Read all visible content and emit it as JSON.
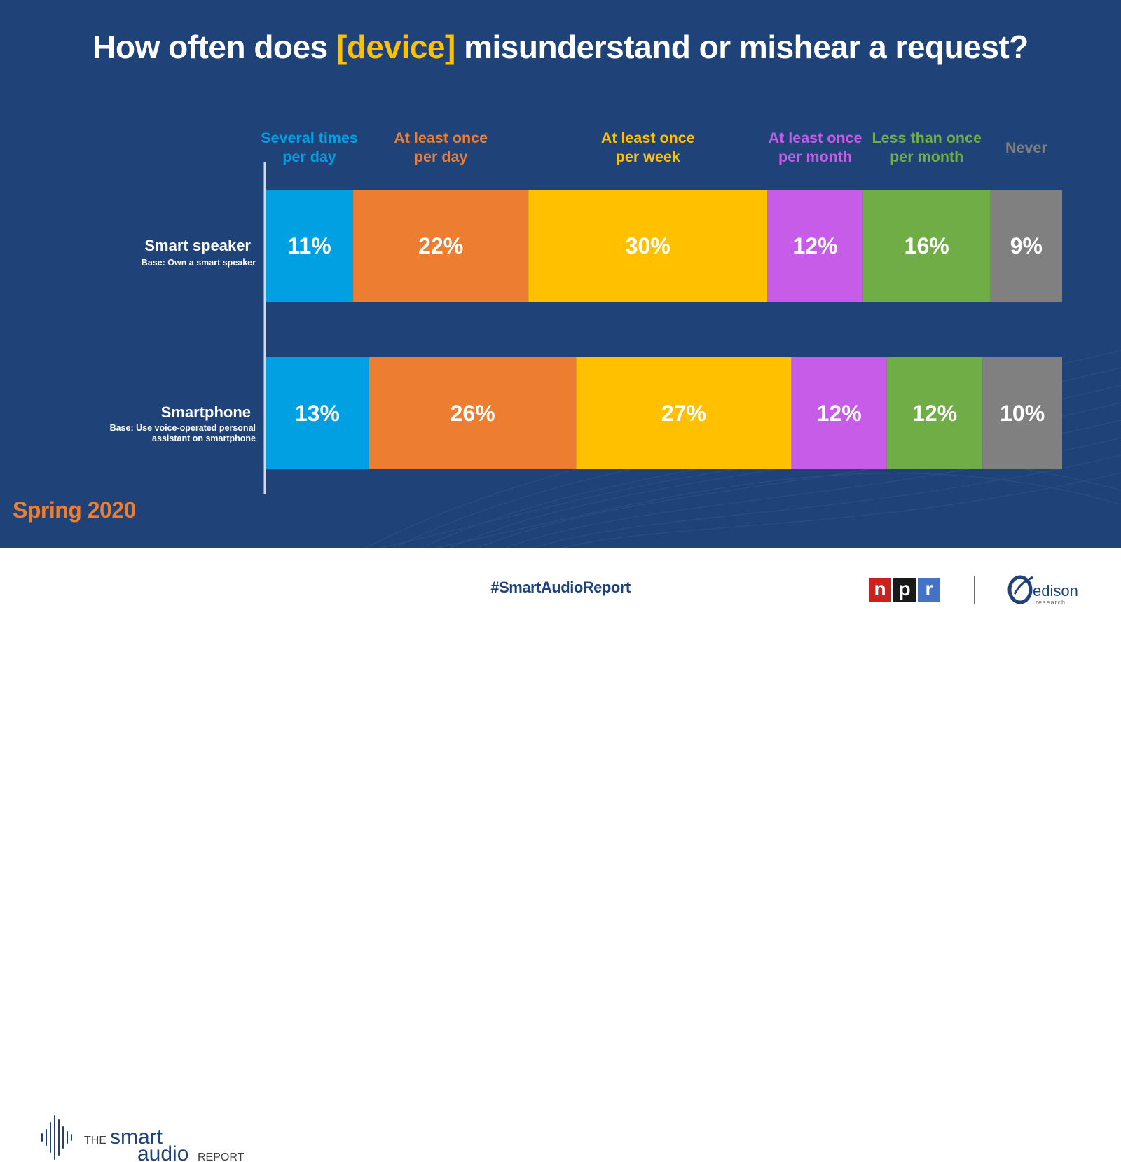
{
  "title": {
    "part1": "How often does ",
    "highlight": "[device]",
    "part2": " misunderstand or mishear a request?"
  },
  "season": "Spring 2020",
  "footer": {
    "brand_the": "THE",
    "brand_smart": "smart",
    "brand_audio": "audio",
    "brand_report": "REPORT",
    "hashtag": "#SmartAudioReport",
    "npr_letters": [
      "n",
      "p",
      "r"
    ],
    "edison": "edison",
    "edison_sub": "research"
  },
  "colors": {
    "background": "#1f4278",
    "title_highlight": "#ffc000",
    "season": "#ed7d31",
    "npr_n": "#c9211e",
    "npr_p": "#1a1a1a",
    "npr_r": "#4472c4",
    "edison": "#1f4278"
  },
  "chart_data": {
    "type": "bar",
    "orientation": "horizontal",
    "stacked": true,
    "categories": [
      "Smart speaker",
      "Smartphone"
    ],
    "category_bases": [
      "Base: Own a smart speaker",
      "Base: Use voice-operated personal assistant on smartphone"
    ],
    "series": [
      {
        "name": "Several times per day",
        "label_lines": [
          "Several times",
          "per day"
        ],
        "color": "#00a0e3",
        "values": [
          11,
          13
        ]
      },
      {
        "name": "At least once per day",
        "label_lines": [
          "At least once",
          "per day"
        ],
        "color": "#ed7d31",
        "values": [
          22,
          26
        ]
      },
      {
        "name": "At least once per week",
        "label_lines": [
          "At least once",
          "per week"
        ],
        "color": "#ffc000",
        "values": [
          30,
          27
        ]
      },
      {
        "name": "At least once per month",
        "label_lines": [
          "At least once",
          "per month"
        ],
        "color": "#c65ce8",
        "values": [
          12,
          12
        ]
      },
      {
        "name": "Less than once per month",
        "label_lines": [
          "Less than once",
          "per month"
        ],
        "color": "#70ad47",
        "values": [
          16,
          12
        ]
      },
      {
        "name": "Never",
        "label_lines": [
          "Never"
        ],
        "color": "#808080",
        "values": [
          9,
          10
        ]
      }
    ],
    "value_suffix": "%",
    "xlim": [
      0,
      100
    ],
    "legend": "top"
  }
}
